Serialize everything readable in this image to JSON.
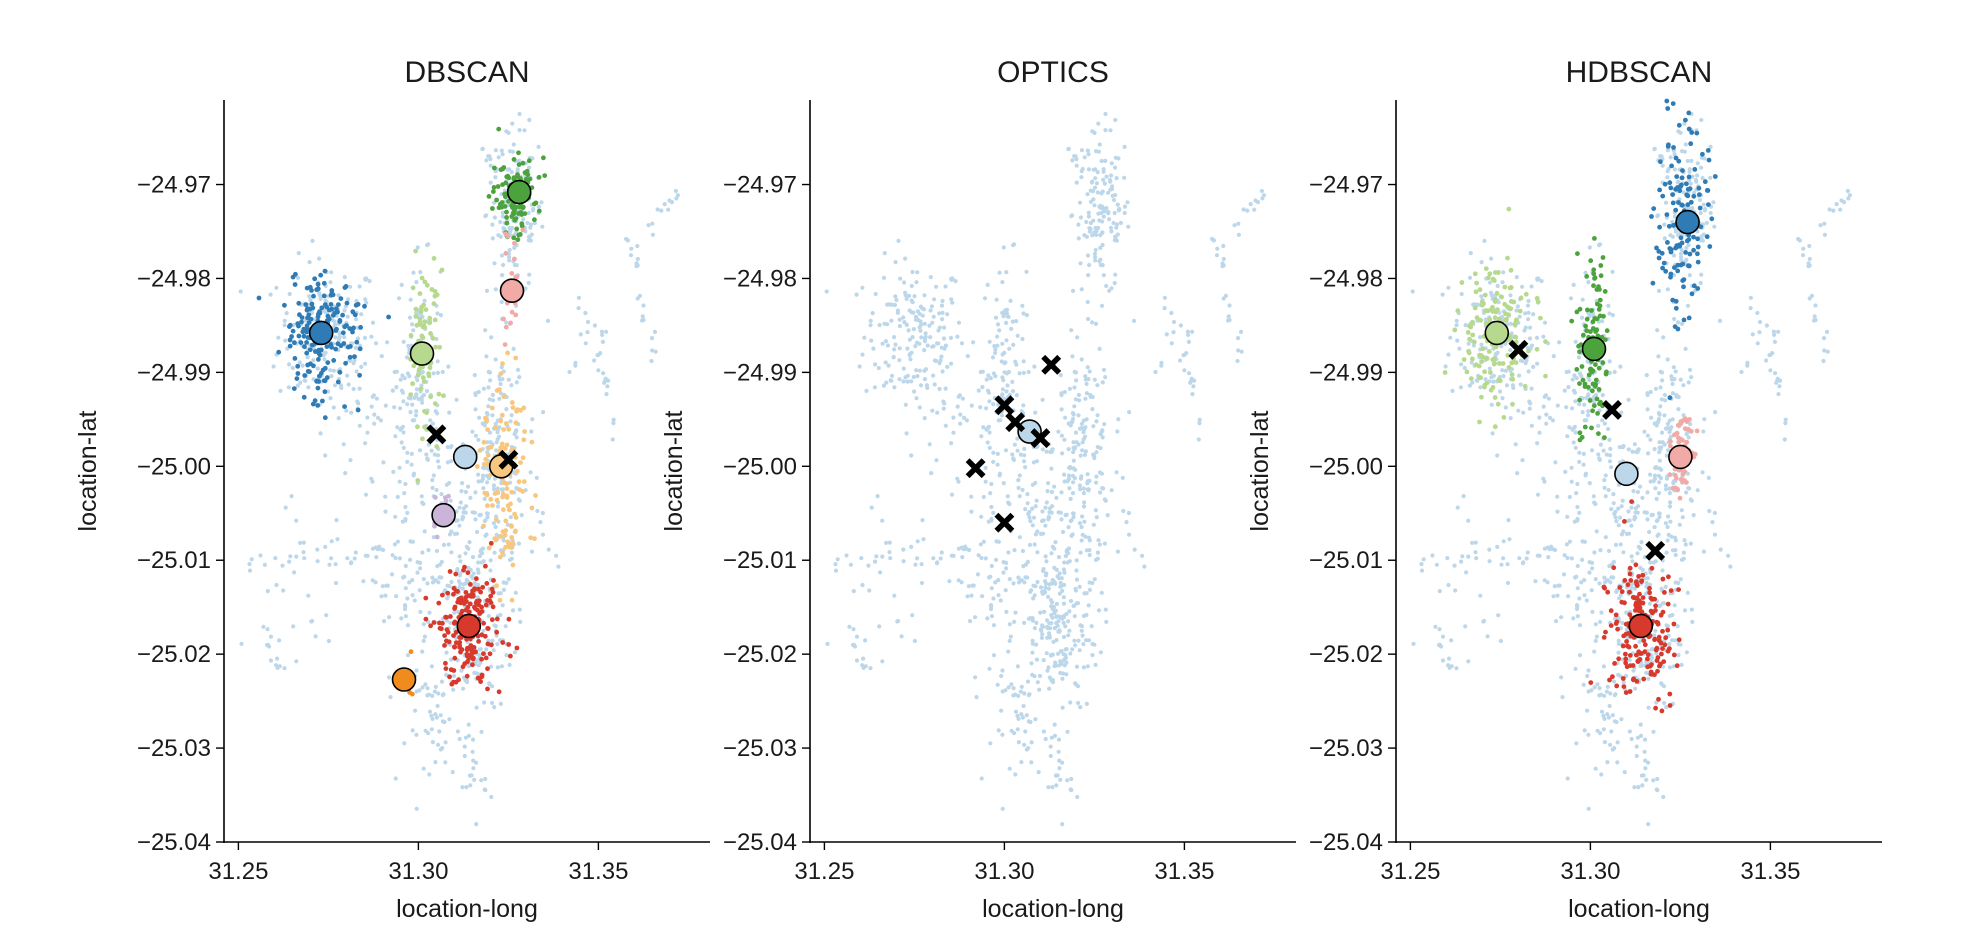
{
  "figure": {
    "panels": [
      {
        "title": "DBSCAN",
        "xlabel": "location-long",
        "ylabel": "location-lat",
        "xlim": [
          31.246,
          31.381
        ],
        "ylim": [
          -25.04,
          -24.961
        ],
        "xticks": [
          31.25,
          31.3,
          31.35
        ],
        "xtick_labels": [
          "31.25",
          "31.30",
          "31.35"
        ],
        "yticks": [
          -24.97,
          -24.98,
          -24.99,
          -25.0,
          -25.01,
          -25.02,
          -25.03,
          -25.04
        ],
        "ytick_labels": [
          "−24.97",
          "−24.98",
          "−24.99",
          "−25.00",
          "−25.01",
          "−25.02",
          "−25.03",
          "−25.04"
        ],
        "clusters": [
          {
            "color": "#2f7bb6",
            "center": [
              31.273,
              -24.986
            ],
            "spread": [
              0.0055,
              0.0033
            ],
            "n": 170
          },
          {
            "color": "#b6d98e",
            "center": [
              31.301,
              -24.988
            ],
            "spread": [
              0.0022,
              0.0045
            ],
            "n": 80
          },
          {
            "color": "#4ca33d",
            "center": [
              31.327,
              -24.971
            ],
            "spread": [
              0.0035,
              0.0022
            ],
            "n": 110
          },
          {
            "color": "#f2aaa6",
            "center": [
              31.326,
              -24.981
            ],
            "spread": [
              0.0012,
              0.003
            ],
            "n": 25
          },
          {
            "color": "#f8c77f",
            "center": [
              31.324,
              -25.001
            ],
            "spread": [
              0.003,
              0.005
            ],
            "n": 120
          },
          {
            "color": "#cab4d8",
            "center": [
              31.306,
              -25.005
            ],
            "spread": [
              0.001,
              0.0015
            ],
            "n": 12
          },
          {
            "color": "#d73a2c",
            "center": [
              31.314,
              -25.017
            ],
            "spread": [
              0.0045,
              0.0035
            ],
            "n": 190
          },
          {
            "color": "#f08c1e",
            "center": [
              31.297,
              -25.0225
            ],
            "spread": [
              0.0012,
              0.0012
            ],
            "n": 15
          }
        ],
        "medoids": [
          {
            "color": "#2f7bb6",
            "x": 31.273,
            "y": -24.9858
          },
          {
            "color": "#b6d98e",
            "x": 31.301,
            "y": -24.988
          },
          {
            "color": "#4ca33d",
            "x": 31.328,
            "y": -24.9708
          },
          {
            "color": "#f2aaa6",
            "x": 31.326,
            "y": -24.9813
          },
          {
            "color": "#bdd7ea",
            "x": 31.313,
            "y": -24.999
          },
          {
            "color": "#f8c77f",
            "x": 31.323,
            "y": -25.0
          },
          {
            "color": "#cab4d8",
            "x": 31.307,
            "y": -25.0052
          },
          {
            "color": "#d73a2c",
            "x": 31.314,
            "y": -25.017
          },
          {
            "color": "#f08c1e",
            "x": 31.296,
            "y": -25.0227
          }
        ],
        "markers_x": [
          [
            31.305,
            -24.9966
          ],
          [
            31.325,
            -24.9993
          ]
        ]
      },
      {
        "title": "OPTICS",
        "xlabel": "location-long",
        "ylabel": "location-lat",
        "xlim": [
          31.246,
          31.381
        ],
        "ylim": [
          -25.04,
          -24.961
        ],
        "xticks": [
          31.25,
          31.3,
          31.35
        ],
        "xtick_labels": [
          "31.25",
          "31.30",
          "31.35"
        ],
        "yticks": [
          -24.97,
          -24.98,
          -24.99,
          -25.0,
          -25.01,
          -25.02,
          -25.03,
          -25.04
        ],
        "ytick_labels": [
          "−24.97",
          "−24.98",
          "−24.99",
          "−25.00",
          "−25.01",
          "−25.02",
          "−25.03",
          "−25.04"
        ],
        "clusters": [],
        "medoids": [
          {
            "color": "#bdd7ea",
            "x": 31.307,
            "y": -24.9963
          }
        ],
        "markers_x": [
          [
            31.313,
            -24.9892
          ],
          [
            31.3,
            -24.9935
          ],
          [
            31.303,
            -24.9953
          ],
          [
            31.31,
            -24.997
          ],
          [
            31.292,
            -25.0002
          ],
          [
            31.3,
            -25.006
          ]
        ]
      },
      {
        "title": "HDBSCAN",
        "xlabel": "location-long",
        "ylabel": "location-lat",
        "xlim": [
          31.246,
          31.381
        ],
        "ylim": [
          -25.04,
          -24.961
        ],
        "xticks": [
          31.25,
          31.3,
          31.35
        ],
        "xtick_labels": [
          "31.25",
          "31.30",
          "31.35"
        ],
        "yticks": [
          -24.97,
          -24.98,
          -24.99,
          -25.0,
          -25.01,
          -25.02,
          -25.03,
          -25.04
        ],
        "ytick_labels": [
          "−24.97",
          "−24.98",
          "−24.99",
          "−25.00",
          "−25.01",
          "−25.02",
          "−25.03",
          "−25.04"
        ],
        "clusters": [
          {
            "color": "#b6d98e",
            "center": [
              31.273,
              -24.986
            ],
            "spread": [
              0.005,
              0.0035
            ],
            "n": 150
          },
          {
            "color": "#4ca33d",
            "center": [
              31.301,
              -24.987
            ],
            "spread": [
              0.0022,
              0.0055
            ],
            "n": 100
          },
          {
            "color": "#2f7bb6",
            "center": [
              31.326,
              -24.974
            ],
            "spread": [
              0.0035,
              0.0055
            ],
            "n": 130
          },
          {
            "color": "#f2aaa6",
            "center": [
              31.325,
              -24.999
            ],
            "spread": [
              0.002,
              0.0022
            ],
            "n": 60
          },
          {
            "color": "#d73a2c",
            "center": [
              31.314,
              -25.017
            ],
            "spread": [
              0.0045,
              0.0035
            ],
            "n": 190
          }
        ],
        "medoids": [
          {
            "color": "#b6d98e",
            "x": 31.274,
            "y": -24.9858
          },
          {
            "color": "#4ca33d",
            "x": 31.301,
            "y": -24.9875
          },
          {
            "color": "#2f7bb6",
            "x": 31.327,
            "y": -24.974
          },
          {
            "color": "#f2aaa6",
            "x": 31.325,
            "y": -24.999
          },
          {
            "color": "#bdd7ea",
            "x": 31.31,
            "y": -25.0008
          },
          {
            "color": "#d73a2c",
            "x": 31.314,
            "y": -25.017
          }
        ],
        "markers_x": [
          [
            31.28,
            -24.9876
          ],
          [
            31.306,
            -24.994
          ],
          [
            31.318,
            -25.009
          ]
        ]
      }
    ],
    "noise_color": "#bdd7ea",
    "noise_regions": [
      {
        "center": [
          31.275,
          -24.986
        ],
        "spread": [
          0.007,
          0.004
        ],
        "n": 180
      },
      {
        "center": [
          31.3,
          -24.988
        ],
        "spread": [
          0.003,
          0.005
        ],
        "n": 90
      },
      {
        "center": [
          31.327,
          -24.973
        ],
        "spread": [
          0.004,
          0.0045
        ],
        "n": 140
      },
      {
        "center": [
          31.322,
          -24.999
        ],
        "spread": [
          0.004,
          0.006
        ],
        "n": 160
      },
      {
        "center": [
          31.314,
          -25.017
        ],
        "spread": [
          0.006,
          0.0045
        ],
        "n": 220
      },
      {
        "center": [
          31.31,
          -25.004
        ],
        "spread": [
          0.007,
          0.0055
        ],
        "n": 120
      },
      {
        "center": [
          31.292,
          -24.995
        ],
        "spread": [
          0.008,
          0.003
        ],
        "n": 60
      },
      {
        "center": [
          31.295,
          -25.012
        ],
        "spread": [
          0.006,
          0.004
        ],
        "n": 60
      },
      {
        "center": [
          31.305,
          -25.028
        ],
        "spread": [
          0.004,
          0.003
        ],
        "n": 40
      },
      {
        "center": [
          31.315,
          -25.032
        ],
        "spread": [
          0.002,
          0.003
        ],
        "n": 25
      },
      {
        "center": [
          31.268,
          -25.012
        ],
        "spread": [
          0.008,
          0.004
        ],
        "n": 30
      }
    ],
    "noise_paths": [
      {
        "from": [
          31.345,
          -24.982
        ],
        "to": [
          31.355,
          -24.996
        ],
        "n": 20
      },
      {
        "from": [
          31.358,
          -24.975
        ],
        "to": [
          31.366,
          -24.99
        ],
        "n": 20
      },
      {
        "from": [
          31.362,
          -24.975
        ],
        "to": [
          31.372,
          -24.971
        ],
        "n": 12
      },
      {
        "from": [
          31.34,
          -24.99
        ],
        "to": [
          31.352,
          -24.986
        ],
        "n": 10
      },
      {
        "from": [
          31.252,
          -25.01
        ],
        "to": [
          31.29,
          -25.009
        ],
        "n": 25
      },
      {
        "from": [
          31.255,
          -25.015
        ],
        "to": [
          31.262,
          -25.022
        ],
        "n": 10
      },
      {
        "from": [
          31.33,
          -25.0
        ],
        "to": [
          31.338,
          -25.01
        ],
        "n": 10
      },
      {
        "from": [
          31.318,
          -24.966
        ],
        "to": [
          31.326,
          -24.978
        ],
        "n": 14
      }
    ]
  },
  "chart_data": {
    "type": "scatter",
    "panels": [
      {
        "title": "DBSCAN",
        "xlabel": "location-long",
        "ylabel": "location-lat",
        "xlim": [
          31.246,
          31.381
        ],
        "ylim": [
          -25.04,
          -24.961
        ],
        "cluster_medoids": [
          [
            31.273,
            -24.9858
          ],
          [
            31.301,
            -24.988
          ],
          [
            31.328,
            -24.9708
          ],
          [
            31.326,
            -24.9813
          ],
          [
            31.313,
            -24.999
          ],
          [
            31.323,
            -25.0
          ],
          [
            31.307,
            -25.0052
          ],
          [
            31.314,
            -25.017
          ],
          [
            31.296,
            -25.0227
          ]
        ],
        "x_markers": [
          [
            31.305,
            -24.9966
          ],
          [
            31.325,
            -24.9993
          ]
        ]
      },
      {
        "title": "OPTICS",
        "xlabel": "location-long",
        "ylabel": "location-lat",
        "xlim": [
          31.246,
          31.381
        ],
        "ylim": [
          -25.04,
          -24.961
        ],
        "cluster_medoids": [
          [
            31.307,
            -24.9963
          ]
        ],
        "x_markers": [
          [
            31.313,
            -24.9892
          ],
          [
            31.3,
            -24.9935
          ],
          [
            31.303,
            -24.9953
          ],
          [
            31.31,
            -24.997
          ],
          [
            31.292,
            -25.0002
          ],
          [
            31.3,
            -25.006
          ]
        ]
      },
      {
        "title": "HDBSCAN",
        "xlabel": "location-long",
        "ylabel": "location-lat",
        "xlim": [
          31.246,
          31.381
        ],
        "ylim": [
          -25.04,
          -24.961
        ],
        "cluster_medoids": [
          [
            31.274,
            -24.9858
          ],
          [
            31.301,
            -24.9875
          ],
          [
            31.327,
            -24.974
          ],
          [
            31.325,
            -24.999
          ],
          [
            31.31,
            -25.0008
          ],
          [
            31.314,
            -25.017
          ]
        ],
        "x_markers": [
          [
            31.28,
            -24.9876
          ],
          [
            31.306,
            -24.994
          ],
          [
            31.318,
            -25.009
          ]
        ]
      }
    ]
  }
}
